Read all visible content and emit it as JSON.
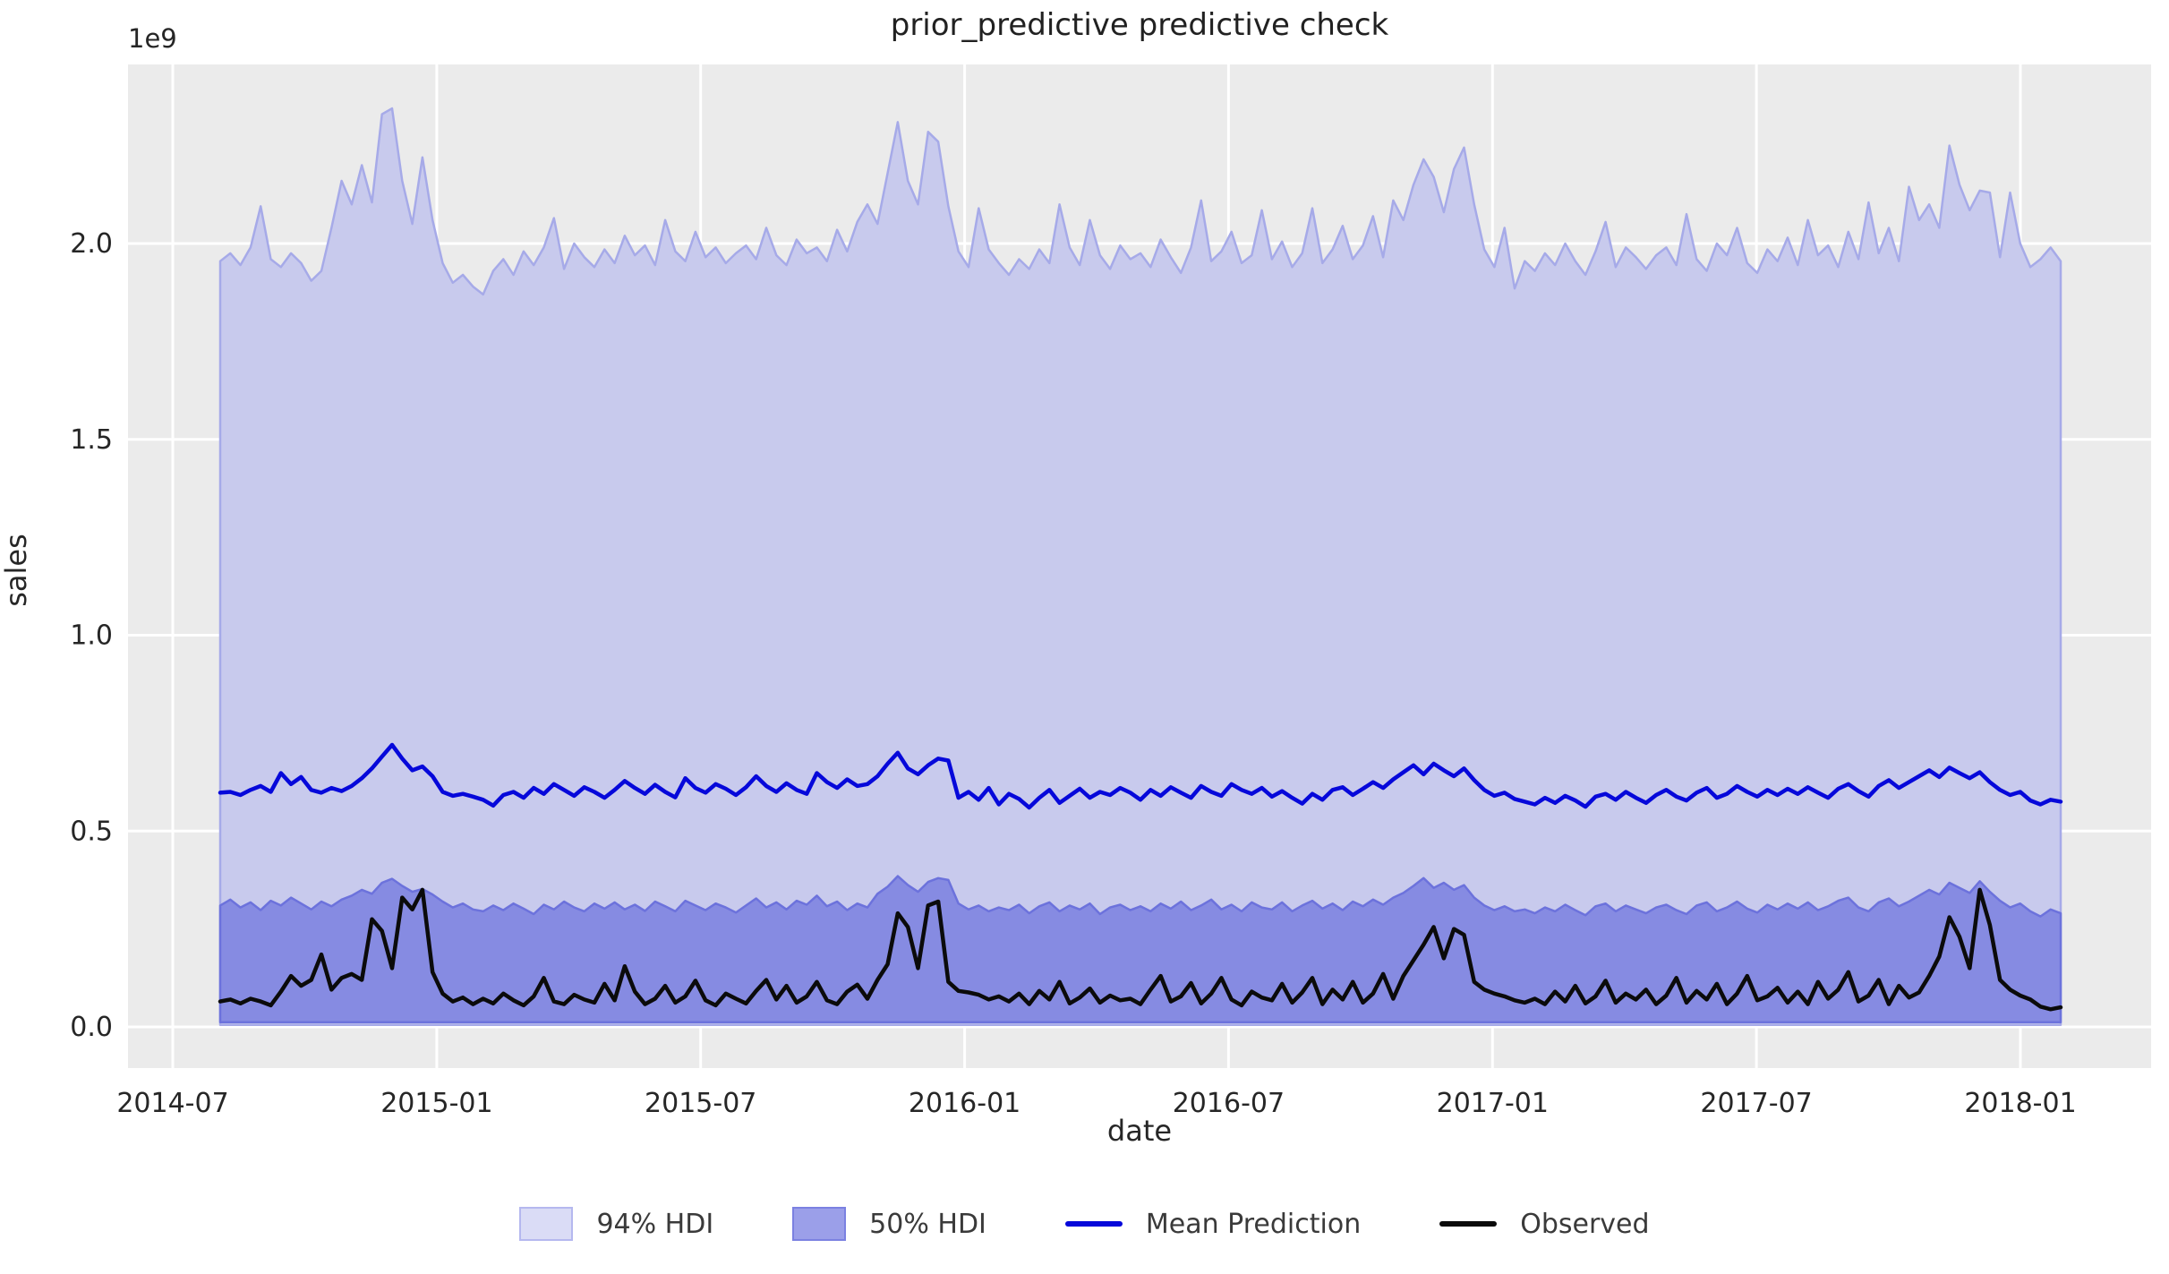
{
  "title": "prior_predictive predictive check",
  "axes": {
    "xlabel": "date",
    "ylabel": "sales",
    "offset_label": "1e9",
    "x_ticks": [
      "2014-07",
      "2015-01",
      "2015-07",
      "2016-01",
      "2016-07",
      "2017-01",
      "2017-07",
      "2018-01"
    ],
    "y_ticks": [
      "0.0",
      "0.5",
      "1.0",
      "1.5",
      "2.0"
    ]
  },
  "legend": [
    {
      "label": "94% HDI",
      "type": "patch",
      "fill": "#dadcf6",
      "edge": "#b5b8ef"
    },
    {
      "label": "50% HDI",
      "type": "patch",
      "fill": "#9b9fe9",
      "edge": "#7b81e1"
    },
    {
      "label": "Mean Prediction",
      "type": "line",
      "color": "#0608da"
    },
    {
      "label": "Observed",
      "type": "line",
      "color": "#0b0b0b"
    }
  ],
  "colors": {
    "figure_background": "#ffffff",
    "axes_background": "#ebebeb",
    "grid": "#ffffff",
    "hdi94_fill": "#c8caed",
    "hdi94_edge": "#a6aae8",
    "hdi50_fill": "#868be2",
    "hdi50_edge": "#6c72dc",
    "mean_line": "#0608da",
    "observed_line": "#0b0b0b",
    "tick_text": "#262626"
  },
  "chart_data": {
    "type": "line",
    "title": "prior_predictive predictive check",
    "xlabel": "date",
    "ylabel": "sales",
    "unit": "1e9 (all y values below are in units of 1e9)",
    "x_start": "2014-08-03",
    "x_step_days": 7,
    "n_points": 183,
    "x_axis_range": [
      "2014-05-30",
      "2018-03-30"
    ],
    "ylim": [
      -0.105,
      2.457
    ],
    "grid": true,
    "legend_position": "bottom center",
    "hdi_94": {
      "lower_constant": 0.005,
      "upper": [
        1.955,
        1.975,
        1.945,
        1.99,
        2.095,
        1.96,
        1.94,
        1.975,
        1.95,
        1.905,
        1.93,
        2.04,
        2.16,
        2.1,
        2.2,
        2.105,
        2.33,
        2.345,
        2.16,
        2.05,
        2.22,
        2.06,
        1.95,
        1.9,
        1.92,
        1.89,
        1.87,
        1.93,
        1.96,
        1.92,
        1.98,
        1.945,
        1.99,
        2.065,
        1.935,
        2.0,
        1.965,
        1.94,
        1.985,
        1.95,
        2.02,
        1.97,
        1.995,
        1.945,
        2.06,
        1.98,
        1.955,
        2.03,
        1.965,
        1.99,
        1.95,
        1.975,
        1.995,
        1.96,
        2.04,
        1.97,
        1.945,
        2.01,
        1.975,
        1.99,
        1.955,
        2.035,
        1.98,
        2.055,
        2.1,
        2.05,
        2.18,
        2.31,
        2.16,
        2.1,
        2.285,
        2.26,
        2.095,
        1.98,
        1.94,
        2.09,
        1.985,
        1.95,
        1.92,
        1.96,
        1.935,
        1.985,
        1.95,
        2.1,
        1.99,
        1.945,
        2.06,
        1.97,
        1.935,
        1.995,
        1.96,
        1.975,
        1.94,
        2.01,
        1.965,
        1.925,
        1.99,
        2.11,
        1.955,
        1.98,
        2.03,
        1.95,
        1.97,
        2.085,
        1.96,
        2.005,
        1.94,
        1.975,
        2.09,
        1.95,
        1.985,
        2.045,
        1.96,
        1.995,
        2.07,
        1.965,
        2.11,
        2.06,
        2.15,
        2.215,
        2.17,
        2.08,
        2.19,
        2.245,
        2.1,
        1.985,
        1.94,
        2.04,
        1.885,
        1.955,
        1.93,
        1.975,
        1.945,
        2.0,
        1.955,
        1.92,
        1.98,
        2.055,
        1.94,
        1.99,
        1.965,
        1.935,
        1.97,
        1.99,
        1.945,
        2.075,
        1.96,
        1.93,
        2.0,
        1.97,
        2.04,
        1.95,
        1.925,
        1.985,
        1.955,
        2.015,
        1.945,
        2.06,
        1.97,
        1.995,
        1.94,
        2.03,
        1.96,
        2.105,
        1.975,
        2.04,
        1.955,
        2.145,
        2.06,
        2.1,
        2.04,
        2.25,
        2.15,
        2.085,
        2.135,
        2.13,
        1.965,
        2.13,
        2.0,
        1.94,
        1.96,
        1.99,
        1.955
      ]
    },
    "hdi_50": {
      "lower_constant": 0.012,
      "upper": [
        0.31,
        0.325,
        0.305,
        0.318,
        0.298,
        0.322,
        0.31,
        0.33,
        0.315,
        0.3,
        0.32,
        0.308,
        0.325,
        0.335,
        0.35,
        0.34,
        0.368,
        0.378,
        0.36,
        0.345,
        0.352,
        0.338,
        0.32,
        0.305,
        0.315,
        0.3,
        0.295,
        0.31,
        0.298,
        0.315,
        0.302,
        0.288,
        0.312,
        0.3,
        0.32,
        0.305,
        0.295,
        0.315,
        0.302,
        0.318,
        0.3,
        0.312,
        0.296,
        0.32,
        0.308,
        0.295,
        0.322,
        0.31,
        0.298,
        0.315,
        0.305,
        0.292,
        0.31,
        0.328,
        0.305,
        0.318,
        0.3,
        0.322,
        0.312,
        0.335,
        0.308,
        0.32,
        0.298,
        0.315,
        0.305,
        0.34,
        0.358,
        0.385,
        0.362,
        0.345,
        0.37,
        0.38,
        0.375,
        0.315,
        0.3,
        0.31,
        0.295,
        0.305,
        0.298,
        0.312,
        0.29,
        0.308,
        0.318,
        0.295,
        0.31,
        0.3,
        0.315,
        0.288,
        0.305,
        0.312,
        0.298,
        0.308,
        0.295,
        0.315,
        0.302,
        0.32,
        0.298,
        0.31,
        0.325,
        0.3,
        0.312,
        0.295,
        0.318,
        0.305,
        0.3,
        0.318,
        0.295,
        0.31,
        0.322,
        0.302,
        0.315,
        0.298,
        0.32,
        0.308,
        0.325,
        0.312,
        0.33,
        0.342,
        0.36,
        0.38,
        0.355,
        0.368,
        0.35,
        0.362,
        0.33,
        0.31,
        0.298,
        0.308,
        0.295,
        0.3,
        0.29,
        0.305,
        0.295,
        0.312,
        0.298,
        0.285,
        0.308,
        0.315,
        0.295,
        0.31,
        0.3,
        0.29,
        0.305,
        0.312,
        0.298,
        0.288,
        0.31,
        0.318,
        0.295,
        0.305,
        0.32,
        0.302,
        0.292,
        0.312,
        0.3,
        0.315,
        0.302,
        0.318,
        0.298,
        0.308,
        0.322,
        0.33,
        0.305,
        0.295,
        0.318,
        0.328,
        0.308,
        0.32,
        0.335,
        0.35,
        0.338,
        0.368,
        0.355,
        0.342,
        0.372,
        0.345,
        0.322,
        0.305,
        0.315,
        0.295,
        0.282,
        0.3,
        0.29
      ]
    },
    "mean_prediction": [
      0.598,
      0.6,
      0.592,
      0.605,
      0.615,
      0.6,
      0.648,
      0.62,
      0.638,
      0.605,
      0.598,
      0.61,
      0.602,
      0.615,
      0.635,
      0.66,
      0.69,
      0.72,
      0.685,
      0.655,
      0.665,
      0.64,
      0.6,
      0.59,
      0.595,
      0.588,
      0.58,
      0.565,
      0.592,
      0.6,
      0.585,
      0.61,
      0.595,
      0.62,
      0.605,
      0.59,
      0.612,
      0.6,
      0.585,
      0.605,
      0.628,
      0.61,
      0.595,
      0.618,
      0.6,
      0.586,
      0.635,
      0.61,
      0.598,
      0.62,
      0.608,
      0.592,
      0.612,
      0.64,
      0.615,
      0.6,
      0.622,
      0.605,
      0.595,
      0.648,
      0.625,
      0.61,
      0.632,
      0.615,
      0.62,
      0.64,
      0.672,
      0.7,
      0.66,
      0.645,
      0.668,
      0.685,
      0.68,
      0.585,
      0.6,
      0.58,
      0.61,
      0.568,
      0.595,
      0.582,
      0.56,
      0.585,
      0.605,
      0.572,
      0.59,
      0.608,
      0.585,
      0.6,
      0.592,
      0.61,
      0.598,
      0.58,
      0.605,
      0.59,
      0.612,
      0.598,
      0.585,
      0.615,
      0.6,
      0.59,
      0.62,
      0.605,
      0.595,
      0.61,
      0.588,
      0.602,
      0.585,
      0.57,
      0.595,
      0.58,
      0.605,
      0.612,
      0.592,
      0.608,
      0.625,
      0.61,
      0.632,
      0.65,
      0.668,
      0.645,
      0.672,
      0.655,
      0.64,
      0.66,
      0.63,
      0.605,
      0.59,
      0.598,
      0.582,
      0.575,
      0.568,
      0.585,
      0.572,
      0.59,
      0.578,
      0.562,
      0.588,
      0.595,
      0.58,
      0.6,
      0.585,
      0.572,
      0.592,
      0.605,
      0.588,
      0.578,
      0.598,
      0.61,
      0.585,
      0.595,
      0.615,
      0.6,
      0.588,
      0.605,
      0.592,
      0.608,
      0.595,
      0.612,
      0.598,
      0.585,
      0.608,
      0.62,
      0.602,
      0.588,
      0.615,
      0.63,
      0.61,
      0.625,
      0.64,
      0.655,
      0.638,
      0.662,
      0.648,
      0.635,
      0.65,
      0.625,
      0.605,
      0.592,
      0.6,
      0.578,
      0.568,
      0.58,
      0.575
    ],
    "observed": [
      0.065,
      0.07,
      0.06,
      0.072,
      0.065,
      0.055,
      0.09,
      0.13,
      0.105,
      0.12,
      0.185,
      0.095,
      0.125,
      0.135,
      0.12,
      0.275,
      0.245,
      0.15,
      0.33,
      0.3,
      0.35,
      0.14,
      0.085,
      0.065,
      0.075,
      0.058,
      0.072,
      0.06,
      0.085,
      0.068,
      0.055,
      0.078,
      0.125,
      0.065,
      0.058,
      0.082,
      0.07,
      0.062,
      0.11,
      0.068,
      0.155,
      0.09,
      0.058,
      0.072,
      0.105,
      0.062,
      0.078,
      0.118,
      0.068,
      0.055,
      0.085,
      0.072,
      0.06,
      0.092,
      0.12,
      0.07,
      0.105,
      0.062,
      0.078,
      0.115,
      0.068,
      0.058,
      0.09,
      0.108,
      0.072,
      0.12,
      0.16,
      0.29,
      0.255,
      0.15,
      0.31,
      0.32,
      0.115,
      0.092,
      0.088,
      0.082,
      0.07,
      0.078,
      0.065,
      0.085,
      0.058,
      0.092,
      0.07,
      0.115,
      0.06,
      0.075,
      0.098,
      0.062,
      0.08,
      0.068,
      0.072,
      0.058,
      0.095,
      0.13,
      0.065,
      0.078,
      0.112,
      0.06,
      0.085,
      0.125,
      0.07,
      0.055,
      0.09,
      0.075,
      0.068,
      0.11,
      0.062,
      0.088,
      0.125,
      0.058,
      0.095,
      0.07,
      0.115,
      0.062,
      0.085,
      0.135,
      0.072,
      0.13,
      0.17,
      0.21,
      0.255,
      0.175,
      0.25,
      0.235,
      0.115,
      0.095,
      0.085,
      0.078,
      0.068,
      0.062,
      0.072,
      0.058,
      0.09,
      0.065,
      0.105,
      0.06,
      0.078,
      0.118,
      0.062,
      0.085,
      0.07,
      0.095,
      0.058,
      0.08,
      0.125,
      0.062,
      0.092,
      0.07,
      0.11,
      0.058,
      0.085,
      0.13,
      0.068,
      0.078,
      0.1,
      0.062,
      0.09,
      0.058,
      0.115,
      0.072,
      0.095,
      0.14,
      0.065,
      0.08,
      0.12,
      0.058,
      0.105,
      0.075,
      0.088,
      0.13,
      0.18,
      0.28,
      0.23,
      0.15,
      0.35,
      0.26,
      0.12,
      0.095,
      0.08,
      0.07,
      0.052,
      0.045,
      0.05
    ]
  }
}
